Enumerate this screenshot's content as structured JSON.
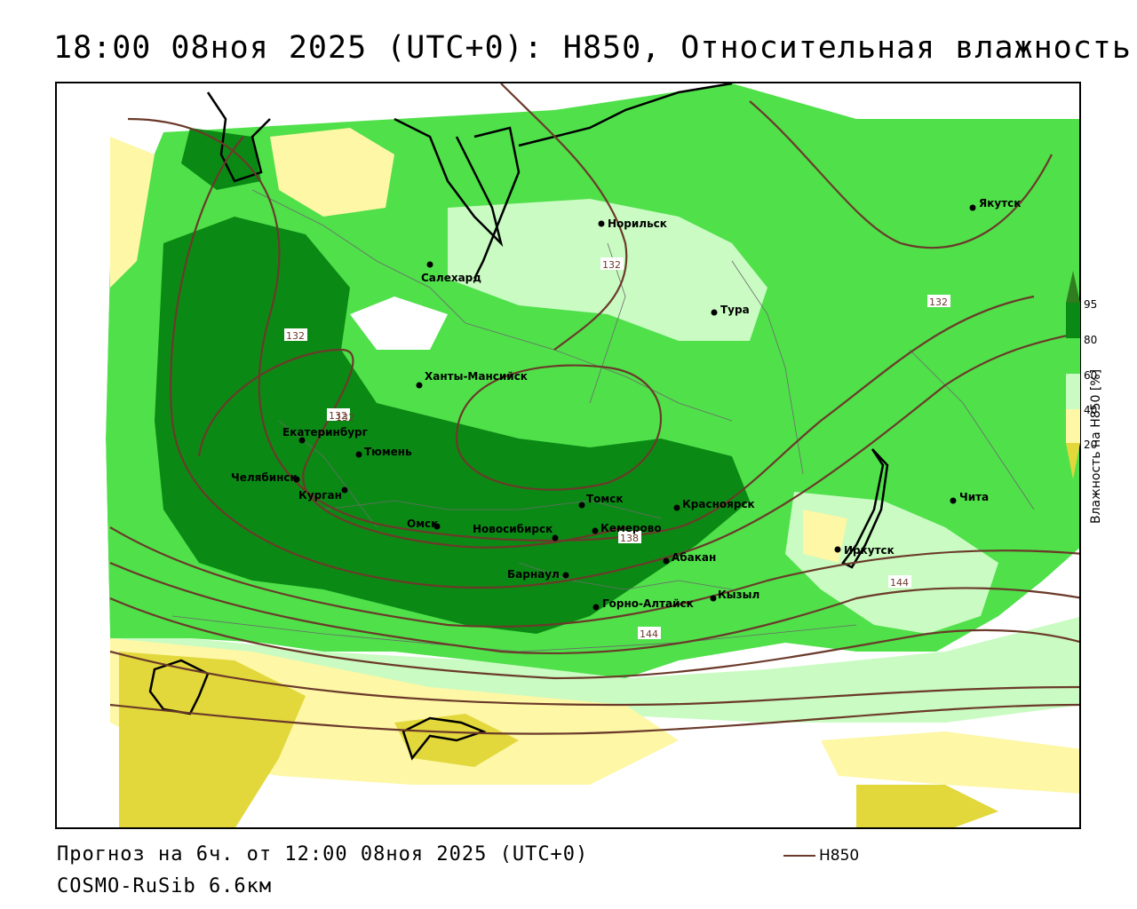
{
  "header": {
    "title": "18:00 08ноя 2025 (UTC+0): H850, Относительная влажность"
  },
  "footer": {
    "forecast": "Прогноз на 6ч. от 12:00 08ноя 2025 (UTC+0)",
    "model": "COSMO-RuSib 6.6км"
  },
  "legend": {
    "line_label": "H850",
    "line_color": "#6b3a2a"
  },
  "colorbar": {
    "title": "Влажность на H850 [%]",
    "ticks": [
      "95",
      "80",
      "60",
      "40",
      "20"
    ],
    "colors": {
      "c95": "#2f7d1f",
      "c80_95": "#0a8a14",
      "c60_80": "#4fe04a",
      "c40_60": "#c9fbc2",
      "c20_40": "#ffffff",
      "c0_20": "#fdf7a6",
      "c_low": "#e2d83b"
    }
  },
  "map": {
    "cities": [
      {
        "name": "Норильск"
      },
      {
        "name": "Якутск"
      },
      {
        "name": "Салехард"
      },
      {
        "name": "Тура"
      },
      {
        "name": "Ханты-Мансийск"
      },
      {
        "name": "Екатеринбург"
      },
      {
        "name": "Тюмень"
      },
      {
        "name": "Челябинск"
      },
      {
        "name": "Курган"
      },
      {
        "name": "Омск"
      },
      {
        "name": "Новосибирск"
      },
      {
        "name": "Томск"
      },
      {
        "name": "Кемерово"
      },
      {
        "name": "Красноярск"
      },
      {
        "name": "Барнаул"
      },
      {
        "name": "Абакан"
      },
      {
        "name": "Горно-Алтайск"
      },
      {
        "name": "Кызыл"
      },
      {
        "name": "Иркутск"
      },
      {
        "name": "Чита"
      }
    ],
    "contour_labels": [
      "132",
      "132",
      "132",
      "132",
      "132",
      "138",
      "144",
      "144"
    ]
  }
}
